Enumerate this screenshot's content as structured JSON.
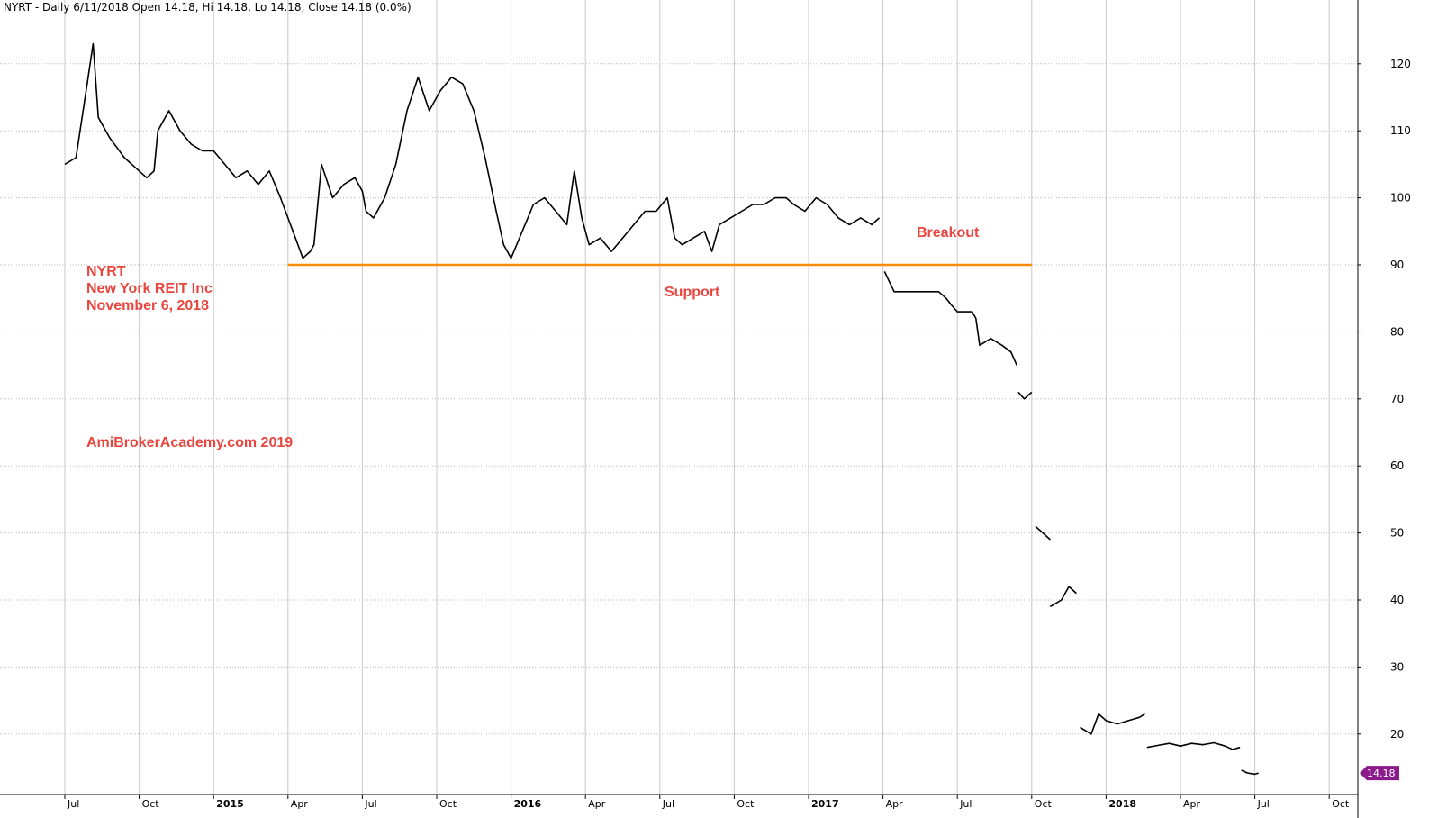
{
  "header": {
    "title": "NYRT - Daily 6/11/2018 Open 14.18, Hi 14.18, Lo 14.18, Close 14.18 (0.0%)"
  },
  "chart_data": {
    "type": "line",
    "y_axis": {
      "ticks": [
        20,
        30,
        40,
        50,
        60,
        70,
        80,
        90,
        100,
        110,
        120
      ],
      "position": "right",
      "grid": true
    },
    "x_axis": {
      "ticks": [
        {
          "label": "Jul",
          "year": false
        },
        {
          "label": "Oct",
          "year": false
        },
        {
          "label": "2015",
          "year": true
        },
        {
          "label": "Apr",
          "year": false
        },
        {
          "label": "Jul",
          "year": false
        },
        {
          "label": "Oct",
          "year": false
        },
        {
          "label": "2016",
          "year": true
        },
        {
          "label": "Apr",
          "year": false
        },
        {
          "label": "Jul",
          "year": false
        },
        {
          "label": "Oct",
          "year": false
        },
        {
          "label": "2017",
          "year": true
        },
        {
          "label": "Apr",
          "year": false
        },
        {
          "label": "Jul",
          "year": false
        },
        {
          "label": "Oct",
          "year": false
        },
        {
          "label": "2018",
          "year": true
        },
        {
          "label": "Apr",
          "year": false
        },
        {
          "label": "Jul",
          "year": false
        },
        {
          "label": "Oct",
          "year": false
        }
      ],
      "grid": true
    },
    "series": [
      {
        "color": "#000000",
        "segments": [
          [
            [
              0.0,
              105
            ],
            [
              0.15,
              106
            ],
            [
              0.3,
              117
            ],
            [
              0.38,
              123
            ],
            [
              0.45,
              112
            ],
            [
              0.6,
              109
            ],
            [
              0.8,
              106
            ],
            [
              1.0,
              104
            ],
            [
              1.1,
              103
            ],
            [
              1.2,
              104
            ],
            [
              1.25,
              110
            ],
            [
              1.4,
              113
            ],
            [
              1.55,
              110
            ],
            [
              1.7,
              108
            ],
            [
              1.85,
              107
            ],
            [
              2.0,
              107
            ],
            [
              2.15,
              105
            ],
            [
              2.3,
              103
            ],
            [
              2.45,
              104
            ],
            [
              2.6,
              102
            ],
            [
              2.75,
              104
            ],
            [
              2.9,
              100
            ],
            [
              3.0,
              97
            ],
            [
              3.1,
              94
            ],
            [
              3.2,
              91
            ],
            [
              3.3,
              92
            ],
            [
              3.35,
              93
            ],
            [
              3.45,
              105
            ],
            [
              3.6,
              100
            ],
            [
              3.75,
              102
            ],
            [
              3.9,
              103
            ],
            [
              4.0,
              101
            ],
            [
              4.05,
              98
            ],
            [
              4.15,
              97
            ],
            [
              4.3,
              100
            ],
            [
              4.45,
              105
            ],
            [
              4.6,
              113
            ],
            [
              4.75,
              118
            ],
            [
              4.9,
              113
            ],
            [
              5.05,
              116
            ],
            [
              5.2,
              118
            ],
            [
              5.35,
              117
            ],
            [
              5.5,
              113
            ],
            [
              5.65,
              106
            ],
            [
              5.8,
              98
            ],
            [
              5.9,
              93
            ],
            [
              6.0,
              91
            ],
            [
              6.15,
              95
            ],
            [
              6.3,
              99
            ],
            [
              6.45,
              100
            ],
            [
              6.6,
              98
            ],
            [
              6.75,
              96
            ],
            [
              6.85,
              104
            ],
            [
              6.95,
              97
            ],
            [
              7.05,
              93
            ],
            [
              7.2,
              94
            ],
            [
              7.35,
              92
            ],
            [
              7.5,
              94
            ],
            [
              7.65,
              96
            ],
            [
              7.8,
              98
            ],
            [
              7.95,
              98
            ],
            [
              8.1,
              100
            ],
            [
              8.2,
              94
            ],
            [
              8.3,
              93
            ],
            [
              8.45,
              94
            ],
            [
              8.6,
              95
            ],
            [
              8.7,
              92
            ],
            [
              8.8,
              96
            ],
            [
              8.95,
              97
            ],
            [
              9.1,
              98
            ],
            [
              9.25,
              99
            ],
            [
              9.4,
              99
            ],
            [
              9.55,
              100
            ],
            [
              9.7,
              100
            ],
            [
              9.8,
              99
            ],
            [
              9.95,
              98
            ],
            [
              10.1,
              100
            ],
            [
              10.25,
              99
            ],
            [
              10.4,
              97
            ],
            [
              10.55,
              96
            ],
            [
              10.7,
              97
            ],
            [
              10.85,
              96
            ],
            [
              10.95,
              97
            ]
          ],
          [
            [
              11.02,
              89
            ],
            [
              11.15,
              86
            ],
            [
              11.3,
              86
            ],
            [
              11.45,
              86
            ],
            [
              11.6,
              86
            ],
            [
              11.75,
              86
            ],
            [
              11.85,
              85
            ],
            [
              11.92,
              84
            ],
            [
              12.0,
              83
            ],
            [
              12.1,
              83
            ],
            [
              12.2,
              83
            ],
            [
              12.25,
              82
            ],
            [
              12.3,
              78
            ],
            [
              12.45,
              79
            ],
            [
              12.6,
              78
            ],
            [
              12.72,
              77
            ],
            [
              12.8,
              75
            ]
          ],
          [
            [
              12.82,
              71
            ],
            [
              12.9,
              70
            ],
            [
              13.0,
              71
            ]
          ],
          [
            [
              13.05,
              51
            ],
            [
              13.15,
              50
            ],
            [
              13.25,
              49
            ]
          ],
          [
            [
              13.25,
              39
            ],
            [
              13.4,
              40
            ],
            [
              13.5,
              42
            ],
            [
              13.6,
              41
            ]
          ],
          [
            [
              13.65,
              21
            ],
            [
              13.8,
              20
            ],
            [
              13.9,
              23
            ],
            [
              14.0,
              22
            ],
            [
              14.15,
              21.5
            ],
            [
              14.3,
              22
            ],
            [
              14.45,
              22.5
            ],
            [
              14.52,
              23
            ]
          ],
          [
            [
              14.55,
              18
            ],
            [
              14.7,
              18.3
            ],
            [
              14.85,
              18.6
            ],
            [
              15.0,
              18.2
            ],
            [
              15.15,
              18.6
            ],
            [
              15.3,
              18.4
            ],
            [
              15.45,
              18.7
            ],
            [
              15.6,
              18.2
            ],
            [
              15.7,
              17.7
            ],
            [
              15.8,
              18
            ]
          ],
          [
            [
              15.82,
              14.6
            ],
            [
              15.9,
              14.2
            ],
            [
              16.0,
              14.0
            ],
            [
              16.05,
              14.18
            ]
          ]
        ]
      }
    ],
    "support_line": {
      "value": 90,
      "x_start": 3.0,
      "x_end": 13.0,
      "color": "#ff8c00"
    },
    "annotations": [
      {
        "text": "Breakout"
      },
      {
        "text": "Support"
      },
      {
        "text": "NYRT"
      },
      {
        "text": "New York REIT Inc"
      },
      {
        "text": "November 6, 2018"
      },
      {
        "text": "AmiBrokerAcademy.com   2019"
      }
    ],
    "last_value": {
      "label": "14.18",
      "value": 14.18,
      "color": "#8b1a8b"
    }
  }
}
